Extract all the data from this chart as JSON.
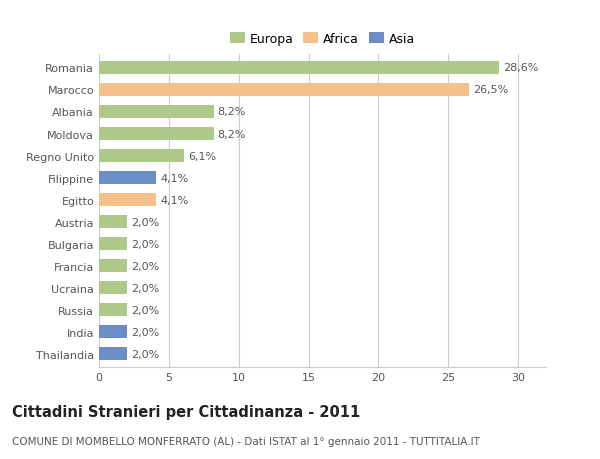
{
  "categories": [
    "Romania",
    "Marocco",
    "Albania",
    "Moldova",
    "Regno Unito",
    "Filippine",
    "Egitto",
    "Austria",
    "Bulgaria",
    "Francia",
    "Ucraina",
    "Russia",
    "India",
    "Thailandia"
  ],
  "values": [
    28.6,
    26.5,
    8.2,
    8.2,
    6.1,
    4.1,
    4.1,
    2.0,
    2.0,
    2.0,
    2.0,
    2.0,
    2.0,
    2.0
  ],
  "labels": [
    "28,6%",
    "26,5%",
    "8,2%",
    "8,2%",
    "6,1%",
    "4,1%",
    "4,1%",
    "2,0%",
    "2,0%",
    "2,0%",
    "2,0%",
    "2,0%",
    "2,0%",
    "2,0%"
  ],
  "continents": [
    "Europa",
    "Africa",
    "Europa",
    "Europa",
    "Europa",
    "Asia",
    "Africa",
    "Europa",
    "Europa",
    "Europa",
    "Europa",
    "Europa",
    "Asia",
    "Asia"
  ],
  "colors": {
    "Europa": "#aec98a",
    "Africa": "#f5c08a",
    "Asia": "#6b8ec7"
  },
  "xlim": [
    0,
    32
  ],
  "xticks": [
    0,
    5,
    10,
    15,
    20,
    25,
    30
  ],
  "title": "Cittadini Stranieri per Cittadinanza - 2011",
  "subtitle": "COMUNE DI MOMBELLO MONFERRATO (AL) - Dati ISTAT al 1° gennaio 2011 - TUTTITALIA.IT",
  "background_color": "#ffffff",
  "grid_color": "#cccccc",
  "bar_height": 0.6,
  "label_fontsize": 8,
  "title_fontsize": 10.5,
  "subtitle_fontsize": 7.5,
  "ytick_fontsize": 8,
  "xtick_fontsize": 8
}
